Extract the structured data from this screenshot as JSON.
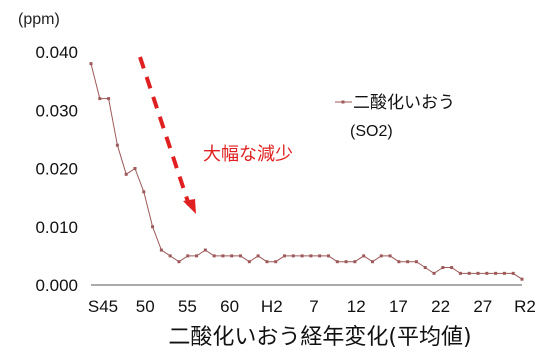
{
  "chart_data": {
    "type": "line",
    "title": "",
    "caption": "二酸化いおう経年変化(平均値)",
    "ylabel": "(ppm)",
    "xlabel": "",
    "ylim": [
      0,
      0.04
    ],
    "y_ticks": [
      "0.000",
      "0.010",
      "0.020",
      "0.030",
      "0.040"
    ],
    "x_tick_labels": [
      "S45",
      "50",
      "55",
      "60",
      "H2",
      "7",
      "12",
      "17",
      "22",
      "27",
      "R2"
    ],
    "grid": false,
    "legend_position": "top-right",
    "series": [
      {
        "name": "二酸化いおう",
        "name_sub": "(SO2)",
        "color": "#9e5a5a",
        "values": [
          0.038,
          0.032,
          0.032,
          0.024,
          0.019,
          0.02,
          0.016,
          0.01,
          0.006,
          0.005,
          0.004,
          0.005,
          0.005,
          0.006,
          0.005,
          0.005,
          0.005,
          0.005,
          0.004,
          0.005,
          0.004,
          0.004,
          0.005,
          0.005,
          0.005,
          0.005,
          0.005,
          0.005,
          0.004,
          0.004,
          0.004,
          0.005,
          0.004,
          0.005,
          0.005,
          0.004,
          0.004,
          0.004,
          0.003,
          0.002,
          0.003,
          0.003,
          0.002,
          0.002,
          0.002,
          0.002,
          0.002,
          0.002,
          0.002,
          0.001
        ]
      }
    ],
    "annotation": {
      "text": "大幅な減少",
      "color": "#e02020"
    }
  }
}
